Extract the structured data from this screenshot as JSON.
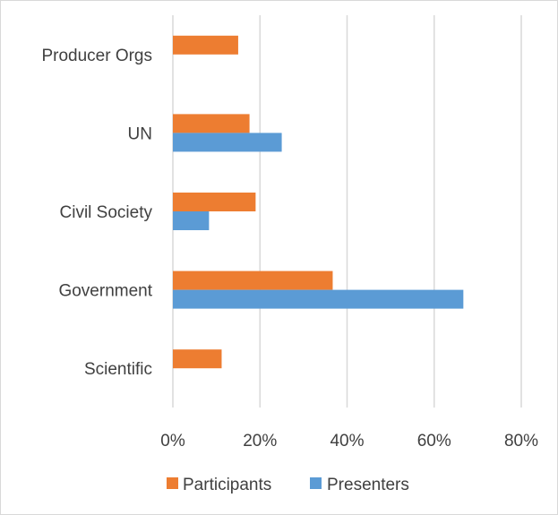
{
  "chart_data": {
    "type": "bar",
    "orientation": "horizontal",
    "categories": [
      "Producer Orgs",
      "UN",
      "Civil Society",
      "Government",
      "Scientific"
    ],
    "series": [
      {
        "name": "Participants",
        "color": "#ED7D31",
        "values": [
          15,
          17.6,
          19,
          36.7,
          11.2
        ]
      },
      {
        "name": "Presenters",
        "color": "#5B9BD5",
        "values": [
          0,
          25,
          8.3,
          66.7,
          0
        ]
      }
    ],
    "x_ticks": [
      "0%",
      "20%",
      "40%",
      "60%",
      "80%"
    ],
    "xlim": [
      0,
      80
    ],
    "grid": true,
    "legend": "bottom",
    "title": "",
    "xlabel": "",
    "ylabel": ""
  }
}
